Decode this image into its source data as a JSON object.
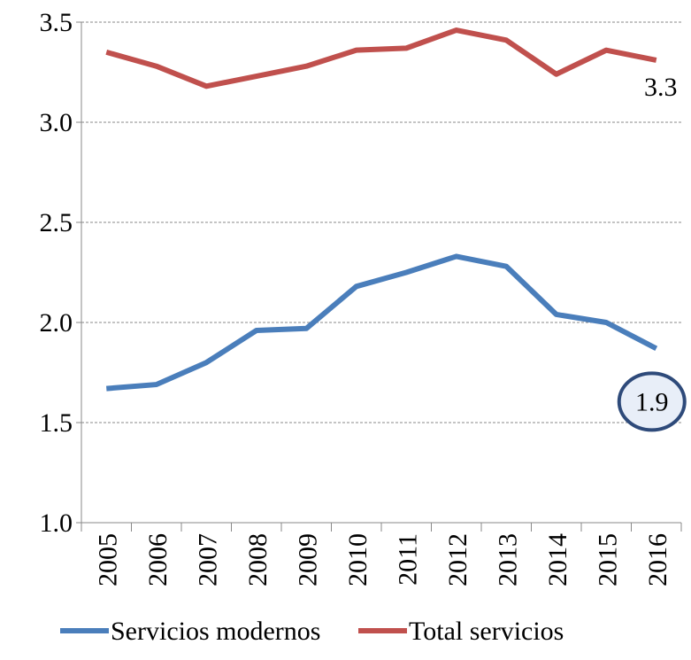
{
  "chart_data": {
    "type": "line",
    "categories": [
      "2005",
      "2006",
      "2007",
      "2008",
      "2009",
      "2010",
      "2011",
      "2012",
      "2013",
      "2014",
      "2015",
      "2016"
    ],
    "series": [
      {
        "name": "Servicios modernos",
        "color": "#4a7ebb",
        "values": [
          1.67,
          1.69,
          1.8,
          1.96,
          1.97,
          2.18,
          2.25,
          2.33,
          2.28,
          2.04,
          2.0,
          1.87
        ],
        "value_labels": [
          null,
          null,
          null,
          null,
          null,
          null,
          null,
          null,
          null,
          null,
          null,
          "1.9"
        ]
      },
      {
        "name": "Total servicios",
        "color": "#c0504d",
        "values": [
          3.35,
          3.28,
          3.18,
          3.23,
          3.28,
          3.36,
          3.37,
          3.46,
          3.41,
          3.24,
          3.36,
          3.31
        ],
        "value_labels": [
          null,
          null,
          null,
          null,
          null,
          null,
          null,
          null,
          null,
          null,
          null,
          "3.3"
        ]
      }
    ],
    "ylim": [
      1.0,
      3.5
    ],
    "yticks": [
      {
        "value": 1.0,
        "label": "1.0"
      },
      {
        "value": 1.5,
        "label": "1.5"
      },
      {
        "value": 2.0,
        "label": "2.0"
      },
      {
        "value": 2.5,
        "label": "2.5"
      },
      {
        "value": 3.0,
        "label": "3.0"
      },
      {
        "value": 3.5,
        "label": "3.5"
      }
    ],
    "grid": true,
    "legend": "bottom"
  }
}
